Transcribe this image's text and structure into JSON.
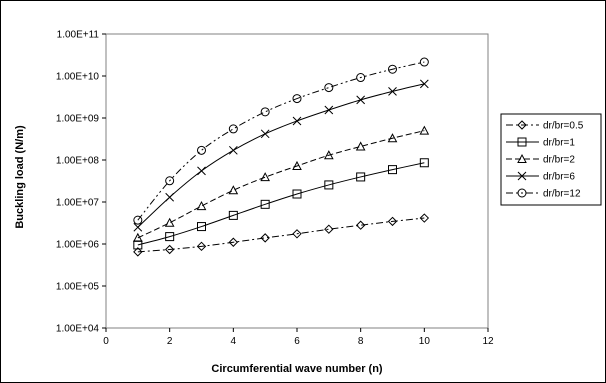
{
  "chart_data": {
    "type": "line",
    "title": "",
    "xlabel": "Circumferential wave number (n)",
    "ylabel": "Buckling load (N/m)",
    "xlim": [
      0,
      12
    ],
    "ylim": [
      10000,
      100000000000
    ],
    "yscale": "log",
    "grid": false,
    "legend_position": "right",
    "xticks": [
      "0",
      "2",
      "4",
      "6",
      "8",
      "10",
      "12"
    ],
    "yticks": [
      "1.00E+04",
      "1.00E+05",
      "1.00E+06",
      "1.00E+07",
      "1.00E+08",
      "1.00E+09",
      "1.00E+10",
      "1.00E+11"
    ],
    "x": [
      1,
      2,
      3,
      4,
      5,
      6,
      7,
      8,
      9,
      10
    ],
    "series": [
      {
        "name": "dr/br=0.5",
        "marker": "diamond",
        "dash": "dashdot",
        "values": [
          650000,
          740000,
          880000,
          1100000,
          1400000,
          1750000,
          2250000,
          2800000,
          3450000,
          4150000
        ]
      },
      {
        "name": "dr/br=1",
        "marker": "square",
        "dash": "solid",
        "values": [
          950000,
          1500000,
          2600000,
          4800000,
          8800000,
          15500000,
          25500000,
          39500000,
          59000000,
          86000000
        ]
      },
      {
        "name": "dr/br=2",
        "marker": "triangle",
        "dash": "dashed",
        "values": [
          1400000,
          3200000,
          8000000,
          19000000,
          39000000,
          72000000,
          130000000,
          210000000,
          330000000,
          500000000
        ]
      },
      {
        "name": "dr/br=6",
        "marker": "x",
        "dash": "solid",
        "values": [
          2500000,
          13000000,
          55000000,
          170000000,
          420000000,
          850000000,
          1550000000,
          2700000000,
          4300000000,
          6500000000
        ]
      },
      {
        "name": "dr/br=12",
        "marker": "circle",
        "dash": "dashdotdot",
        "values": [
          3700000,
          32000000,
          170000000,
          550000000,
          1400000000,
          2900000000,
          5300000000,
          9200000000,
          14500000000,
          21500000000
        ]
      }
    ]
  }
}
